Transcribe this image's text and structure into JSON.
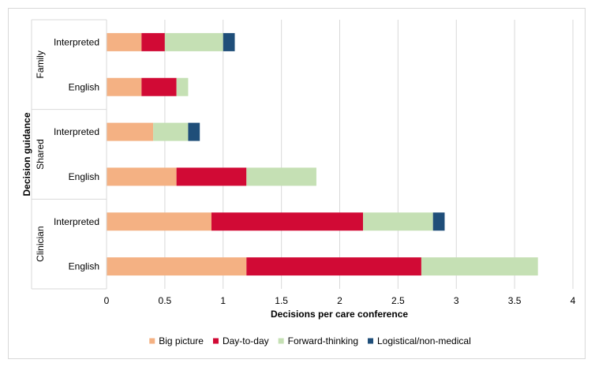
{
  "chart_data": {
    "type": "bar",
    "orientation": "horizontal",
    "stacked": true,
    "xlabel": "Decisions per care conference",
    "ylabel": "Decision guidance",
    "xlim": [
      0,
      4
    ],
    "xticks": [
      "0",
      "0.5",
      "1",
      "1.5",
      "2",
      "2.5",
      "3",
      "3.5",
      "4"
    ],
    "xtick_values": [
      0,
      0.5,
      1,
      1.5,
      2,
      2.5,
      3,
      3.5,
      4
    ],
    "grid": "vertical",
    "legend_position": "bottom",
    "groups": [
      "Family",
      "Shared",
      "Clinician"
    ],
    "categories": [
      {
        "group": "Family",
        "label": "Interpreted"
      },
      {
        "group": "Family",
        "label": "English"
      },
      {
        "group": "Shared",
        "label": "Interpreted"
      },
      {
        "group": "Shared",
        "label": "English"
      },
      {
        "group": "Clinician",
        "label": "Interpreted"
      },
      {
        "group": "Clinician",
        "label": "English"
      }
    ],
    "series": [
      {
        "name": "Big picture",
        "color": "#f4b183",
        "values": [
          0.3,
          0.3,
          0.4,
          0.6,
          0.9,
          1.2
        ]
      },
      {
        "name": "Day-to-day",
        "color": "#d10a35",
        "values": [
          0.2,
          0.3,
          0.0,
          0.6,
          1.3,
          1.5
        ]
      },
      {
        "name": "Forward-thinking",
        "color": "#c5e0b4",
        "values": [
          0.5,
          0.1,
          0.3,
          0.6,
          0.6,
          1.0
        ]
      },
      {
        "name": "Logistical/non-medical",
        "color": "#1f4e79",
        "values": [
          0.1,
          0.0,
          0.1,
          0.0,
          0.1,
          0.0
        ]
      }
    ]
  }
}
